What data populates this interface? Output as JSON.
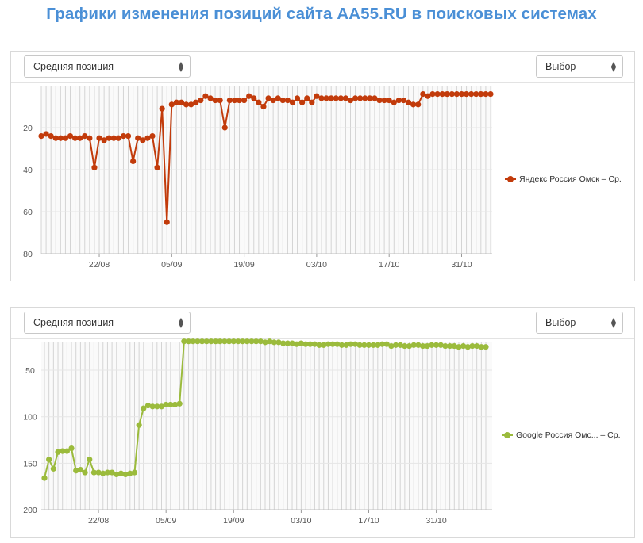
{
  "page": {
    "title": "Графики изменения позиций сайта AA55.RU в поисковых системах"
  },
  "controls": {
    "metric_select": "Средняя позиция",
    "choice_select": "Выбор"
  },
  "chart_data": [
    {
      "type": "line",
      "color": "#c23b0b",
      "ylim": [
        80,
        0
      ],
      "y_ticks": [
        "20",
        "40",
        "60",
        "80"
      ],
      "y_tick_values": [
        20,
        40,
        60,
        80
      ],
      "x_tick_labels": [
        "22/08",
        "05/09",
        "19/09",
        "03/10",
        "17/10",
        "31/10"
      ],
      "x_tick_indices": [
        12,
        27,
        42,
        57,
        72,
        87
      ],
      "legend": "Яндекс Россия Омск – Ср.",
      "series": [
        {
          "name": "Яндекс Россия Омск – Ср.",
          "values": [
            24,
            23,
            24,
            25,
            25,
            25,
            24,
            25,
            25,
            24,
            25,
            39,
            25,
            26,
            25,
            25,
            25,
            24,
            24,
            36,
            25,
            26,
            25,
            24,
            39,
            11,
            65,
            9,
            8,
            8,
            9,
            9,
            8,
            7,
            5,
            6,
            7,
            7,
            20,
            7,
            7,
            7,
            7,
            5,
            6,
            8,
            10,
            6,
            7,
            6,
            7,
            7,
            8,
            6,
            8,
            6,
            8,
            5,
            6,
            6,
            6,
            6,
            6,
            6,
            7,
            6,
            6,
            6,
            6,
            6,
            7,
            7,
            7,
            8,
            7,
            7,
            8,
            9,
            9,
            4,
            5,
            4,
            4,
            4,
            4,
            4,
            4,
            4,
            4,
            4,
            4,
            4,
            4,
            4
          ]
        }
      ]
    },
    {
      "type": "line",
      "color": "#9bbb3c",
      "ylim": [
        200,
        15
      ],
      "y_ticks": [
        "50",
        "100",
        "150",
        "200"
      ],
      "y_tick_values": [
        50,
        100,
        150,
        200
      ],
      "x_tick_labels": [
        "22/08",
        "05/09",
        "19/09",
        "03/10",
        "17/10",
        "31/10"
      ],
      "x_tick_indices": [
        12,
        27,
        42,
        57,
        72,
        87
      ],
      "legend": "Google Россия Омс... – Ср.",
      "series": [
        {
          "name": "Google Россия Омс... – Ср.",
          "values": [
            166,
            146,
            156,
            138,
            137,
            137,
            134,
            158,
            157,
            160,
            146,
            160,
            160,
            161,
            160,
            160,
            162,
            161,
            162,
            161,
            160,
            109,
            91,
            88,
            89,
            89,
            89,
            87,
            87,
            87,
            86,
            19,
            19,
            19,
            19,
            19,
            19,
            19,
            19,
            19,
            19,
            19,
            19,
            19,
            19,
            19,
            19,
            19,
            19,
            20,
            19,
            20,
            20,
            21,
            21,
            21,
            22,
            21,
            22,
            22,
            22,
            23,
            23,
            22,
            22,
            22,
            23,
            23,
            22,
            22,
            23,
            23,
            23,
            23,
            23,
            22,
            22,
            24,
            23,
            23,
            24,
            24,
            23,
            23,
            24,
            24,
            23,
            23,
            23,
            24,
            24,
            24,
            25,
            24,
            25,
            24,
            24,
            25,
            25
          ]
        }
      ]
    }
  ]
}
